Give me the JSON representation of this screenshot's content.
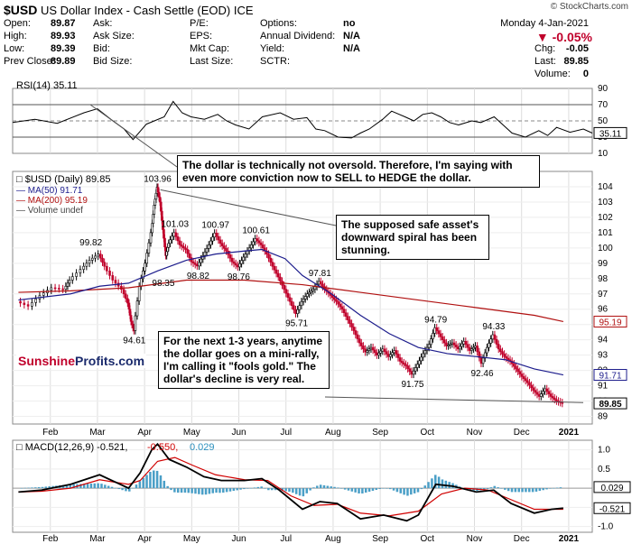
{
  "header": {
    "symbol": "$USD",
    "name": "US Dollar Index - Cash Settle (EOD)",
    "exchange": "ICE",
    "credit": "© StockCharts.com",
    "date": "Monday  4-Jan-2021",
    "change_pct": "▼ -0.05%",
    "quote_rows": [
      [
        [
          "Open:",
          "89.87"
        ],
        [
          "Ask:",
          ""
        ],
        [
          "P/E:",
          ""
        ],
        [
          "Options:",
          "no"
        ]
      ],
      [
        [
          "High:",
          "89.93"
        ],
        [
          "Ask Size:",
          ""
        ],
        [
          "EPS:",
          ""
        ],
        [
          "Annual Dividend:",
          "N/A"
        ]
      ],
      [
        [
          "Low:",
          "89.39"
        ],
        [
          "Bid:",
          ""
        ],
        [
          "Mkt Cap:",
          ""
        ],
        [
          "Yield:",
          "N/A"
        ]
      ],
      [
        [
          "Prev Close:",
          "89.89"
        ],
        [
          "Bid Size:",
          ""
        ],
        [
          "Last Size:",
          ""
        ],
        [
          "SCTR:",
          ""
        ]
      ]
    ],
    "right_rows": [
      [
        "Chg:",
        "-0.05"
      ],
      [
        "Last:",
        "89.85"
      ],
      [
        "Volume:",
        "0"
      ]
    ]
  },
  "chart_data": [
    {
      "type": "line",
      "title": "RSI(14) 35.11",
      "series": [
        {
          "name": "RSI(14)",
          "last": 35.11
        }
      ],
      "ylim": [
        10,
        90
      ],
      "yticks": [
        10,
        30,
        50,
        70,
        90
      ],
      "levels": [
        30,
        70
      ],
      "last_label": "35.11",
      "points": [
        [
          0,
          48
        ],
        [
          0.05,
          52
        ],
        [
          0.1,
          47
        ],
        [
          0.16,
          60
        ],
        [
          0.19,
          65
        ],
        [
          0.22,
          52
        ],
        [
          0.25,
          40
        ],
        [
          0.27,
          27
        ],
        [
          0.3,
          46
        ],
        [
          0.34,
          55
        ],
        [
          0.36,
          74
        ],
        [
          0.38,
          60
        ],
        [
          0.4,
          55
        ],
        [
          0.43,
          52
        ],
        [
          0.46,
          58
        ],
        [
          0.48,
          50
        ],
        [
          0.5,
          45
        ],
        [
          0.53,
          40
        ],
        [
          0.56,
          55
        ],
        [
          0.6,
          60
        ],
        [
          0.63,
          52
        ],
        [
          0.66,
          54
        ],
        [
          0.68,
          40
        ],
        [
          0.7,
          38
        ],
        [
          0.73,
          30
        ],
        [
          0.76,
          29
        ],
        [
          0.78,
          35
        ],
        [
          0.8,
          40
        ],
        [
          0.83,
          52
        ],
        [
          0.85,
          62
        ],
        [
          0.88,
          55
        ],
        [
          0.9,
          50
        ],
        [
          0.92,
          58
        ],
        [
          0.94,
          60
        ],
        [
          0.96,
          55
        ],
        [
          0.98,
          48
        ],
        [
          1.0,
          45
        ],
        [
          1.03,
          50
        ],
        [
          1.05,
          48
        ],
        [
          1.08,
          55
        ],
        [
          1.1,
          45
        ],
        [
          1.12,
          35
        ],
        [
          1.15,
          30
        ],
        [
          1.18,
          38
        ],
        [
          1.2,
          32
        ],
        [
          1.22,
          42
        ],
        [
          1.25,
          36
        ],
        [
          1.28,
          40
        ],
        [
          1.3,
          35
        ]
      ]
    },
    {
      "type": "candlestick",
      "title": "$USD (Daily) 89.85",
      "legend": [
        {
          "name": "MA(50) 91.71",
          "color": "#1c1c8c"
        },
        {
          "name": "MA(200) 95.19",
          "color": "#b01010"
        },
        {
          "name": "Volume undef",
          "color": "#888888"
        }
      ],
      "x_labels": [
        "Feb",
        "Mar",
        "Apr",
        "May",
        "Jun",
        "Jul",
        "Aug",
        "Sep",
        "Oct",
        "Nov",
        "Dec",
        "2021"
      ],
      "ylim": [
        88.5,
        105
      ],
      "yticks": [
        89,
        90,
        91,
        92,
        93,
        94,
        95,
        96,
        97,
        98,
        99,
        100,
        101,
        102,
        103,
        104
      ],
      "price_path": [
        [
          0.01,
          96.5
        ],
        [
          0.03,
          96.2
        ],
        [
          0.05,
          96.9
        ],
        [
          0.07,
          97.4
        ],
        [
          0.09,
          97.3
        ],
        [
          0.1,
          97.9
        ],
        [
          0.12,
          98.6
        ],
        [
          0.135,
          99.2
        ],
        [
          0.15,
          99.6
        ],
        [
          0.16,
          98.8
        ],
        [
          0.175,
          97.9
        ],
        [
          0.19,
          97.3
        ],
        [
          0.2,
          96.4
        ],
        [
          0.205,
          95.2
        ],
        [
          0.21,
          94.6
        ],
        [
          0.22,
          97.5
        ],
        [
          0.23,
          99.0
        ],
        [
          0.24,
          101.0
        ],
        [
          0.245,
          102.8
        ],
        [
          0.25,
          103.96
        ],
        [
          0.255,
          103.0
        ],
        [
          0.26,
          101.2
        ],
        [
          0.265,
          99.5
        ],
        [
          0.27,
          100.3
        ],
        [
          0.28,
          101.0
        ],
        [
          0.29,
          100.2
        ],
        [
          0.3,
          99.9
        ],
        [
          0.31,
          99.1
        ],
        [
          0.32,
          98.82
        ],
        [
          0.33,
          99.5
        ],
        [
          0.34,
          100.2
        ],
        [
          0.35,
          100.97
        ],
        [
          0.36,
          100.3
        ],
        [
          0.37,
          99.8
        ],
        [
          0.38,
          99.1
        ],
        [
          0.39,
          98.76
        ],
        [
          0.4,
          99.4
        ],
        [
          0.41,
          100.0
        ],
        [
          0.42,
          100.61
        ],
        [
          0.43,
          100.2
        ],
        [
          0.44,
          99.6
        ],
        [
          0.45,
          98.8
        ],
        [
          0.46,
          98.1
        ],
        [
          0.47,
          97.3
        ],
        [
          0.48,
          96.5
        ],
        [
          0.49,
          95.71
        ],
        [
          0.5,
          96.5
        ],
        [
          0.51,
          97.0
        ],
        [
          0.52,
          97.3
        ],
        [
          0.53,
          97.81
        ],
        [
          0.54,
          97.3
        ],
        [
          0.55,
          96.9
        ],
        [
          0.56,
          96.5
        ],
        [
          0.57,
          96.0
        ],
        [
          0.58,
          95.3
        ],
        [
          0.59,
          94.6
        ],
        [
          0.6,
          93.8
        ],
        [
          0.61,
          93.2
        ],
        [
          0.62,
          93.5
        ],
        [
          0.63,
          93.0
        ],
        [
          0.64,
          93.4
        ],
        [
          0.65,
          92.9
        ],
        [
          0.66,
          93.3
        ],
        [
          0.67,
          92.6
        ],
        [
          0.68,
          92.3
        ],
        [
          0.69,
          91.75
        ],
        [
          0.7,
          92.4
        ],
        [
          0.71,
          93.1
        ],
        [
          0.72,
          93.7
        ],
        [
          0.73,
          94.79
        ],
        [
          0.74,
          94.2
        ],
        [
          0.75,
          93.6
        ],
        [
          0.76,
          93.8
        ],
        [
          0.77,
          93.4
        ],
        [
          0.78,
          93.9
        ],
        [
          0.79,
          93.3
        ],
        [
          0.8,
          93.6
        ],
        [
          0.81,
          92.46
        ],
        [
          0.82,
          93.5
        ],
        [
          0.83,
          94.33
        ],
        [
          0.84,
          93.4
        ],
        [
          0.85,
          92.9
        ],
        [
          0.86,
          92.6
        ],
        [
          0.87,
          92.1
        ],
        [
          0.88,
          91.6
        ],
        [
          0.89,
          91.2
        ],
        [
          0.9,
          90.7
        ],
        [
          0.91,
          90.3
        ],
        [
          0.92,
          90.8
        ],
        [
          0.93,
          90.3
        ],
        [
          0.94,
          90.0
        ],
        [
          0.95,
          89.85
        ]
      ],
      "ma50_path": [
        [
          0.01,
          96.6
        ],
        [
          0.1,
          97.0
        ],
        [
          0.15,
          97.5
        ],
        [
          0.2,
          97.7
        ],
        [
          0.25,
          98.5
        ],
        [
          0.3,
          99.2
        ],
        [
          0.35,
          99.6
        ],
        [
          0.4,
          99.8
        ],
        [
          0.43,
          99.9
        ],
        [
          0.47,
          99.3
        ],
        [
          0.5,
          98.2
        ],
        [
          0.55,
          97.0
        ],
        [
          0.6,
          95.6
        ],
        [
          0.65,
          94.4
        ],
        [
          0.7,
          93.5
        ],
        [
          0.75,
          93.1
        ],
        [
          0.8,
          92.9
        ],
        [
          0.85,
          92.7
        ],
        [
          0.9,
          92.1
        ],
        [
          0.95,
          91.71
        ]
      ],
      "ma200_path": [
        [
          0.01,
          97.1
        ],
        [
          0.1,
          97.2
        ],
        [
          0.2,
          97.4
        ],
        [
          0.3,
          97.9
        ],
        [
          0.4,
          97.9
        ],
        [
          0.5,
          97.6
        ],
        [
          0.6,
          97.1
        ],
        [
          0.7,
          96.6
        ],
        [
          0.8,
          96.1
        ],
        [
          0.9,
          95.6
        ],
        [
          0.95,
          95.19
        ]
      ],
      "annotations": [
        {
          "text": "103.96",
          "x": 0.25,
          "y": 103.96
        },
        {
          "text": "101.03",
          "x": 0.28,
          "y": 101.03
        },
        {
          "text": "100.97",
          "x": 0.35,
          "y": 100.97
        },
        {
          "text": "100.61",
          "x": 0.42,
          "y": 100.61
        },
        {
          "text": "99.82",
          "x": 0.135,
          "y": 99.82
        },
        {
          "text": "98.82",
          "x": 0.32,
          "y": 98.82
        },
        {
          "text": "98.76",
          "x": 0.39,
          "y": 98.76
        },
        {
          "text": "98.35",
          "x": 0.26,
          "y": 98.35
        },
        {
          "text": "97.81",
          "x": 0.53,
          "y": 97.81
        },
        {
          "text": "95.71",
          "x": 0.49,
          "y": 95.71
        },
        {
          "text": "94.61",
          "x": 0.21,
          "y": 94.61
        },
        {
          "text": "94.79",
          "x": 0.73,
          "y": 94.79
        },
        {
          "text": "94.33",
          "x": 0.83,
          "y": 94.33
        },
        {
          "text": "92.46",
          "x": 0.81,
          "y": 92.46
        },
        {
          "text": "91.75",
          "x": 0.69,
          "y": 91.75
        }
      ],
      "price_tags": [
        {
          "text": "95.19",
          "value": 95.19,
          "color": "#b01010"
        },
        {
          "text": "91.71",
          "value": 91.71,
          "color": "#1c1c8c"
        },
        {
          "text": "89.85",
          "value": 89.85,
          "color": "#000000"
        }
      ]
    },
    {
      "type": "line",
      "title": "MACD(12,26,9) -0.521, -0.550, 0.029",
      "legend": [
        {
          "name": "MACD(12,26,9) -0.521",
          "color": "#000000"
        },
        {
          "name": "-0.550",
          "color": "#d00000"
        },
        {
          "name": "0.029",
          "color": "#2a8fbd"
        }
      ],
      "ylim": [
        -1.15,
        1.25
      ],
      "yticks": [
        -1.0,
        -0.5,
        0.0,
        0.5,
        1.0
      ],
      "last_labels": [
        {
          "text": "0.029",
          "value": 0.029
        },
        {
          "text": "-0.521",
          "value": -0.521
        }
      ],
      "macd_path": [
        [
          0.01,
          -0.1
        ],
        [
          0.05,
          -0.05
        ],
        [
          0.1,
          0.1
        ],
        [
          0.15,
          0.35
        ],
        [
          0.2,
          0.0
        ],
        [
          0.22,
          0.4
        ],
        [
          0.24,
          1.0
        ],
        [
          0.25,
          1.15
        ],
        [
          0.27,
          0.75
        ],
        [
          0.3,
          0.55
        ],
        [
          0.33,
          0.3
        ],
        [
          0.36,
          0.2
        ],
        [
          0.4,
          0.2
        ],
        [
          0.43,
          0.25
        ],
        [
          0.46,
          -0.05
        ],
        [
          0.5,
          -0.55
        ],
        [
          0.53,
          -0.35
        ],
        [
          0.56,
          -0.4
        ],
        [
          0.6,
          -0.8
        ],
        [
          0.64,
          -0.7
        ],
        [
          0.68,
          -0.85
        ],
        [
          0.7,
          -0.7
        ],
        [
          0.73,
          0.1
        ],
        [
          0.76,
          0.05
        ],
        [
          0.8,
          -0.1
        ],
        [
          0.83,
          -0.05
        ],
        [
          0.86,
          -0.4
        ],
        [
          0.9,
          -0.65
        ],
        [
          0.93,
          -0.55
        ],
        [
          0.95,
          -0.52
        ]
      ],
      "signal_path": [
        [
          0.01,
          -0.1
        ],
        [
          0.05,
          -0.08
        ],
        [
          0.1,
          0.0
        ],
        [
          0.15,
          0.22
        ],
        [
          0.2,
          0.1
        ],
        [
          0.22,
          0.2
        ],
        [
          0.25,
          0.7
        ],
        [
          0.28,
          0.8
        ],
        [
          0.31,
          0.6
        ],
        [
          0.35,
          0.35
        ],
        [
          0.4,
          0.22
        ],
        [
          0.44,
          0.2
        ],
        [
          0.48,
          -0.2
        ],
        [
          0.52,
          -0.45
        ],
        [
          0.56,
          -0.42
        ],
        [
          0.6,
          -0.65
        ],
        [
          0.65,
          -0.72
        ],
        [
          0.7,
          -0.6
        ],
        [
          0.74,
          -0.15
        ],
        [
          0.78,
          0.0
        ],
        [
          0.82,
          -0.05
        ],
        [
          0.86,
          -0.3
        ],
        [
          0.9,
          -0.55
        ],
        [
          0.95,
          -0.55
        ]
      ]
    }
  ],
  "notes": {
    "oversold": "The dollar is technically not oversold. Therefore, I'm saying with even more conviction now to SELL to HEDGE the dollar.",
    "spiral": "The supposed safe asset's downward spiral has been stunning.",
    "fools_gold": "For the next 1-3 years, anytime the dollar goes on a mini-rally, I'm calling it \"fools gold.\" The dollar's decline is very real."
  },
  "logo": {
    "part1": "Sunshine",
    "part2": "Profits.com",
    "color1": "#c0002b",
    "color2": "#1a2a6c"
  }
}
